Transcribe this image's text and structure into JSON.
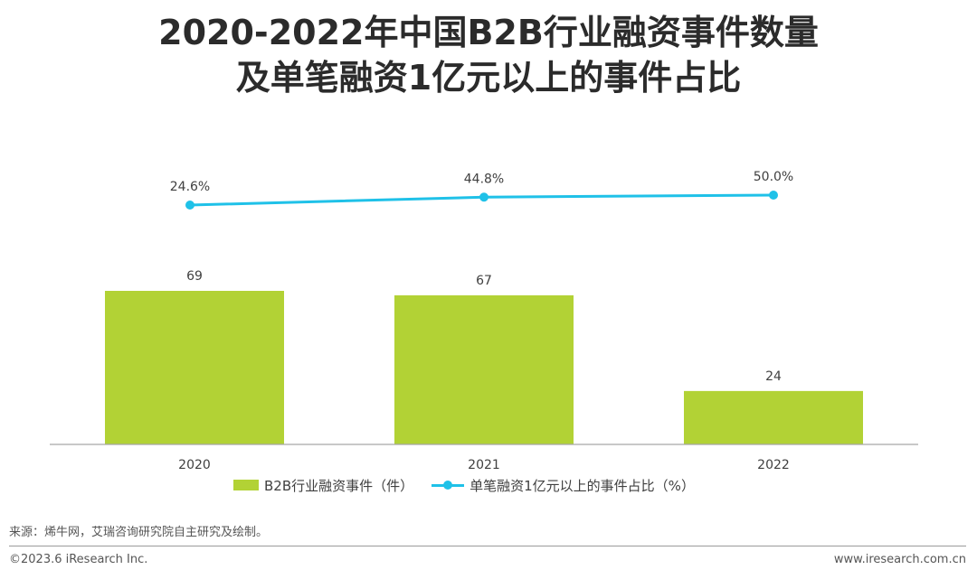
{
  "title": {
    "line1": "2020-2022年中国B2B行业融资事件数量",
    "line2": "及单笔融资1亿元以上的事件占比"
  },
  "chart_data": {
    "type": "bar+line",
    "categories": [
      "2020",
      "2021",
      "2022"
    ],
    "series": [
      {
        "name": "B2B行业融资事件（件）",
        "type": "bar",
        "values": [
          69,
          67,
          24
        ],
        "labels": [
          "69",
          "67",
          "24"
        ],
        "color": "#b2d235"
      },
      {
        "name": "单笔融资1亿元以上的事件占比（%）",
        "type": "line",
        "values": [
          24.6,
          44.8,
          50.0
        ],
        "labels": [
          "24.6%",
          "44.8%",
          "50.0%"
        ],
        "color": "#1fc1e8"
      }
    ],
    "legend_position": "bottom",
    "grid": false
  },
  "colors": {
    "bar": "#b2d235",
    "line": "#1fc1e8",
    "axis": "#a6a6a6"
  },
  "legend": {
    "bar_label": "B2B行业融资事件（件）",
    "line_label": "单笔融资1亿元以上的事件占比（%）"
  },
  "footer": {
    "source": "来源：烯牛网，艾瑞咨询研究院自主研究及绘制。",
    "copyright": "©2023.6 iResearch Inc.",
    "website": "www.iresearch.com.cn"
  }
}
